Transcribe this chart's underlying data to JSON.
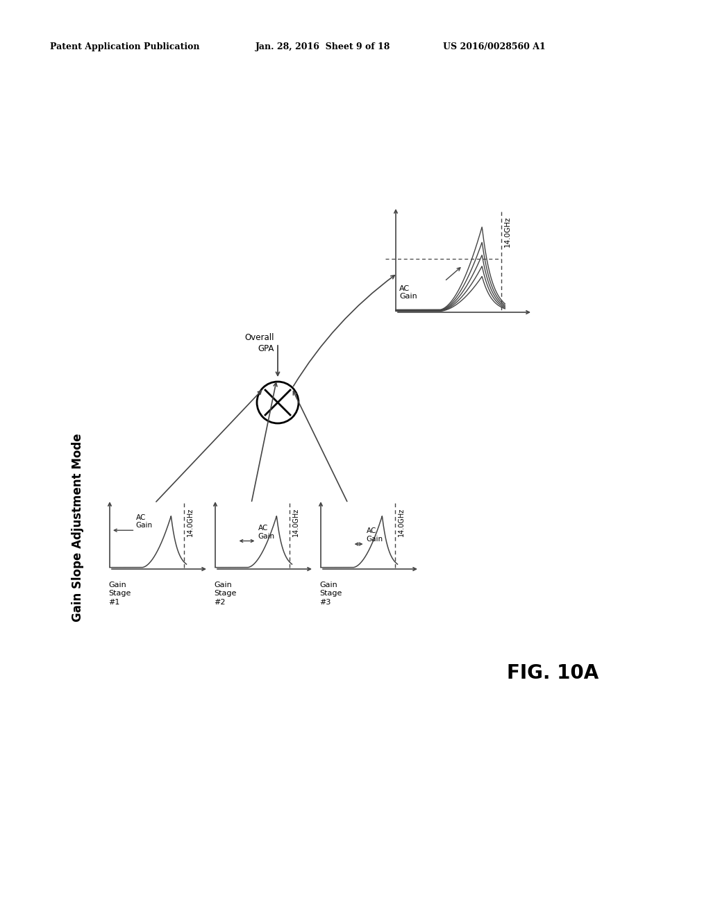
{
  "bg_color": "#ffffff",
  "header_text": "Patent Application Publication",
  "header_date": "Jan. 28, 2016  Sheet 9 of 18",
  "header_patent": "US 2016/0028560 A1",
  "title": "Gain Slope Adjustment Mode",
  "fig_label": "FIG. 10A",
  "stages": [
    "Gain\nStage\n#1",
    "Gain\nStage\n#2",
    "Gain\nStage\n#3"
  ],
  "freq_label": "14.0GHz",
  "ac_gain_label": "AC\nGain",
  "overall_label": "Overall\nGPA",
  "overall_ac_gain": "AC\nGain",
  "text_color": "#111111",
  "line_color": "#444444"
}
